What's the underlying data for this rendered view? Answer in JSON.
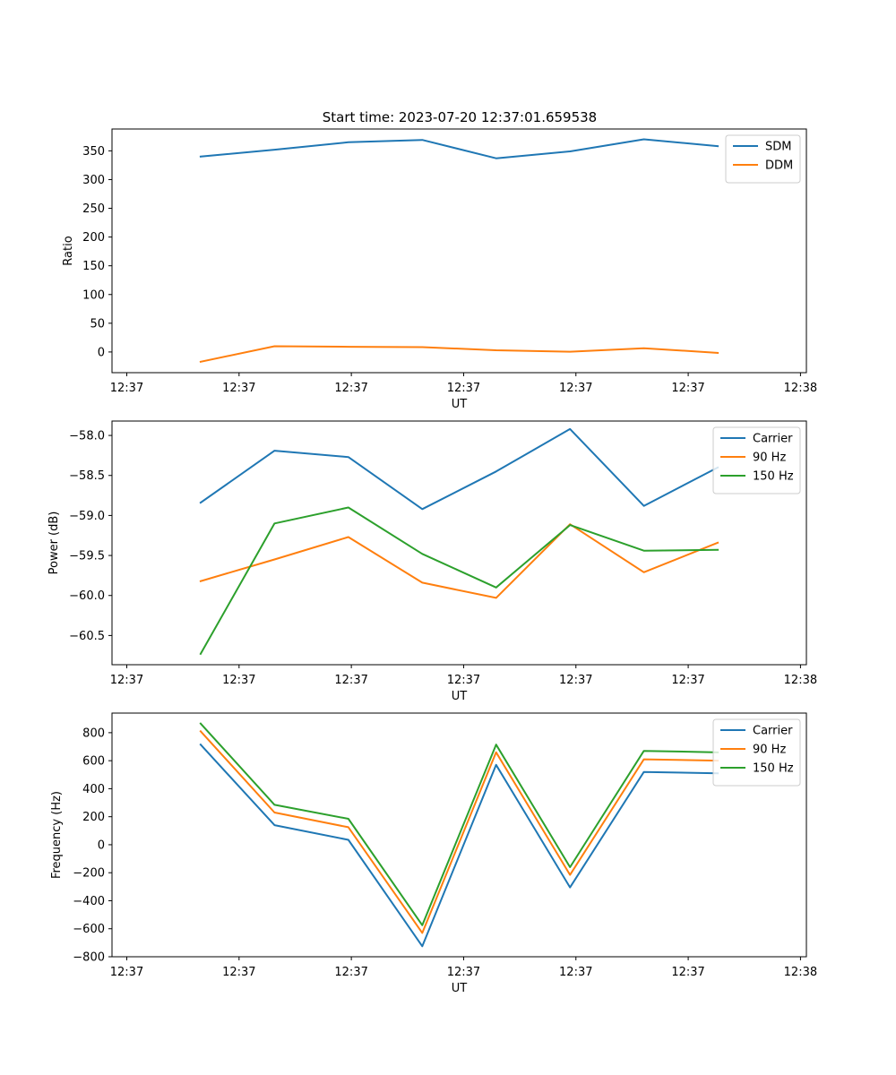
{
  "title": "Start time: 2023-07-20 12:37:01.659538",
  "colors": {
    "blue": "#1f77b4",
    "orange": "#ff7f0e",
    "green": "#2ca02c"
  },
  "chart_data": [
    {
      "id": "ratio",
      "type": "line",
      "xlabel": "UT",
      "ylabel": "Ratio",
      "x": [
        0.5,
        1.0,
        1.5,
        2.0,
        2.5,
        3.0,
        3.5,
        4.0
      ],
      "xlim": [
        -0.1,
        4.6
      ],
      "xticks": [
        0,
        0.76,
        1.52,
        2.28,
        3.04,
        3.8,
        4.56
      ],
      "xtick_labels": [
        "12:37",
        "12:37",
        "12:37",
        "12:37",
        "12:37",
        "12:37",
        "12:38"
      ],
      "ylim": [
        -36,
        388
      ],
      "yticks": [
        0,
        50,
        100,
        150,
        200,
        250,
        300,
        350
      ],
      "ytick_labels": [
        "0",
        "50",
        "100",
        "150",
        "200",
        "250",
        "300",
        "350"
      ],
      "legend_position": "top-right",
      "series": [
        {
          "name": "SDM",
          "color": "#1f77b4",
          "values": [
            340,
            352,
            365,
            369,
            337,
            349,
            370,
            358
          ]
        },
        {
          "name": "DDM",
          "color": "#ff7f0e",
          "values": [
            -17,
            10,
            9,
            8.5,
            3,
            0.5,
            6.5,
            -1.5
          ]
        }
      ]
    },
    {
      "id": "power",
      "type": "line",
      "xlabel": "UT",
      "ylabel": "Power (dB)",
      "x": [
        0.5,
        1.0,
        1.5,
        2.0,
        2.5,
        3.0,
        3.5,
        4.0
      ],
      "xlim": [
        -0.1,
        4.6
      ],
      "xticks": [
        0,
        0.76,
        1.52,
        2.28,
        3.04,
        3.8,
        4.56
      ],
      "xtick_labels": [
        "12:37",
        "12:37",
        "12:37",
        "12:37",
        "12:37",
        "12:37",
        "12:38"
      ],
      "ylim": [
        -60.865,
        -57.82
      ],
      "yticks": [
        -60.5,
        -60.0,
        -59.5,
        -59.0,
        -58.5,
        -58.0
      ],
      "ytick_labels": [
        "−60.5",
        "−60.0",
        "−59.5",
        "−59.0",
        "−58.5",
        "−58.0"
      ],
      "legend_position": "top-right",
      "series": [
        {
          "name": "Carrier",
          "color": "#1f77b4",
          "values": [
            -58.84,
            -58.19,
            -58.27,
            -58.92,
            -58.45,
            -57.92,
            -58.88,
            -58.4
          ]
        },
        {
          "name": "90 Hz",
          "color": "#ff7f0e",
          "values": [
            -59.82,
            -59.55,
            -59.27,
            -59.84,
            -60.03,
            -59.11,
            -59.71,
            -59.34
          ]
        },
        {
          "name": "150 Hz",
          "color": "#2ca02c",
          "values": [
            -60.73,
            -59.1,
            -58.9,
            -59.48,
            -59.9,
            -59.12,
            -59.44,
            -59.43
          ]
        }
      ]
    },
    {
      "id": "frequency",
      "type": "line",
      "xlabel": "UT",
      "ylabel": "Frequency (Hz)",
      "x": [
        0.5,
        1.0,
        1.5,
        2.0,
        2.5,
        3.0,
        3.5,
        4.0
      ],
      "xlim": [
        -0.1,
        4.6
      ],
      "xticks": [
        0,
        0.76,
        1.52,
        2.28,
        3.04,
        3.8,
        4.56
      ],
      "xtick_labels": [
        "12:37",
        "12:37",
        "12:37",
        "12:37",
        "12:37",
        "12:37",
        "12:38"
      ],
      "ylim": [
        -800,
        940
      ],
      "yticks": [
        -800,
        -600,
        -400,
        -200,
        0,
        200,
        400,
        600,
        800
      ],
      "ytick_labels": [
        "−800",
        "−600",
        "−400",
        "−200",
        "0",
        "200",
        "400",
        "600",
        "800"
      ],
      "legend_position": "top-right",
      "series": [
        {
          "name": "Carrier",
          "color": "#1f77b4",
          "values": [
            715,
            140,
            35,
            -725,
            570,
            -305,
            520,
            510
          ]
        },
        {
          "name": "90 Hz",
          "color": "#ff7f0e",
          "values": [
            810,
            230,
            125,
            -630,
            660,
            -215,
            610,
            600
          ]
        },
        {
          "name": "150 Hz",
          "color": "#2ca02c",
          "values": [
            865,
            285,
            185,
            -575,
            715,
            -160,
            670,
            660
          ]
        }
      ]
    }
  ]
}
